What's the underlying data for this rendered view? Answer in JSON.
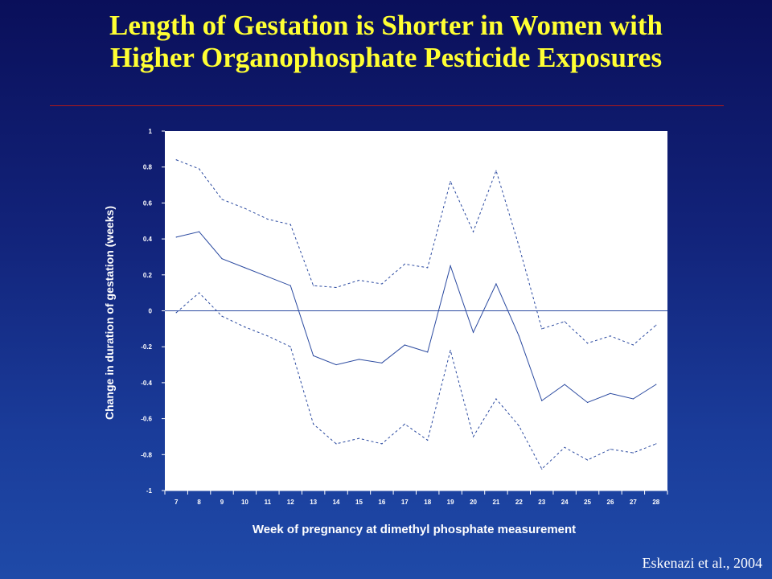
{
  "slide": {
    "title_line1": "Length of Gestation is Shorter in Women with",
    "title_line2": "Higher Organophosphate Pesticide Exposures",
    "citation": "Eskenazi et al., 2004"
  },
  "colors": {
    "title": "#ffff33",
    "plot_background": "#ffffff",
    "series_line": "#2b4aa0"
  },
  "chart_data": {
    "type": "line",
    "title": "",
    "xlabel": "Week of pregnancy at dimethyl phosphate measurement",
    "ylabel": "Change in duration of gestation (weeks)",
    "x": [
      7,
      8,
      9,
      10,
      11,
      12,
      13,
      14,
      15,
      16,
      17,
      18,
      19,
      20,
      21,
      22,
      23,
      24,
      25,
      26,
      27,
      28
    ],
    "xticks": [
      "7",
      "8",
      "9",
      "10",
      "11",
      "12",
      "13",
      "14",
      "15",
      "16",
      "17",
      "18",
      "19",
      "20",
      "21",
      "22",
      "23",
      "24",
      "25",
      "26",
      "27",
      "28"
    ],
    "yticks": [
      "1",
      "0.8",
      "0.6",
      "0.4",
      "0.2",
      "0",
      "-0.2",
      "-0.4",
      "-0.6",
      "-0.8",
      "-1"
    ],
    "ylim": [
      -1,
      1
    ],
    "grid": false,
    "legend": "none",
    "series": [
      {
        "style": "solid",
        "values": [
          0.41,
          0.44,
          0.29,
          0.24,
          0.19,
          0.14,
          -0.25,
          -0.3,
          -0.27,
          -0.29,
          -0.19,
          -0.23,
          0.25,
          -0.12,
          0.15,
          -0.14,
          -0.5,
          -0.41,
          -0.51,
          -0.46,
          -0.49,
          -0.41
        ]
      },
      {
        "style": "dashed",
        "values": [
          0.84,
          0.79,
          0.62,
          0.57,
          0.51,
          0.48,
          0.14,
          0.13,
          0.17,
          0.15,
          0.26,
          0.24,
          0.72,
          0.44,
          0.78,
          0.36,
          -0.1,
          -0.06,
          -0.18,
          -0.14,
          -0.19,
          -0.08
        ]
      },
      {
        "style": "dashed",
        "values": [
          -0.01,
          0.1,
          -0.03,
          -0.09,
          -0.14,
          -0.2,
          -0.63,
          -0.74,
          -0.71,
          -0.74,
          -0.63,
          -0.72,
          -0.22,
          -0.7,
          -0.49,
          -0.64,
          -0.88,
          -0.76,
          -0.83,
          -0.77,
          -0.79,
          -0.74
        ]
      }
    ]
  }
}
